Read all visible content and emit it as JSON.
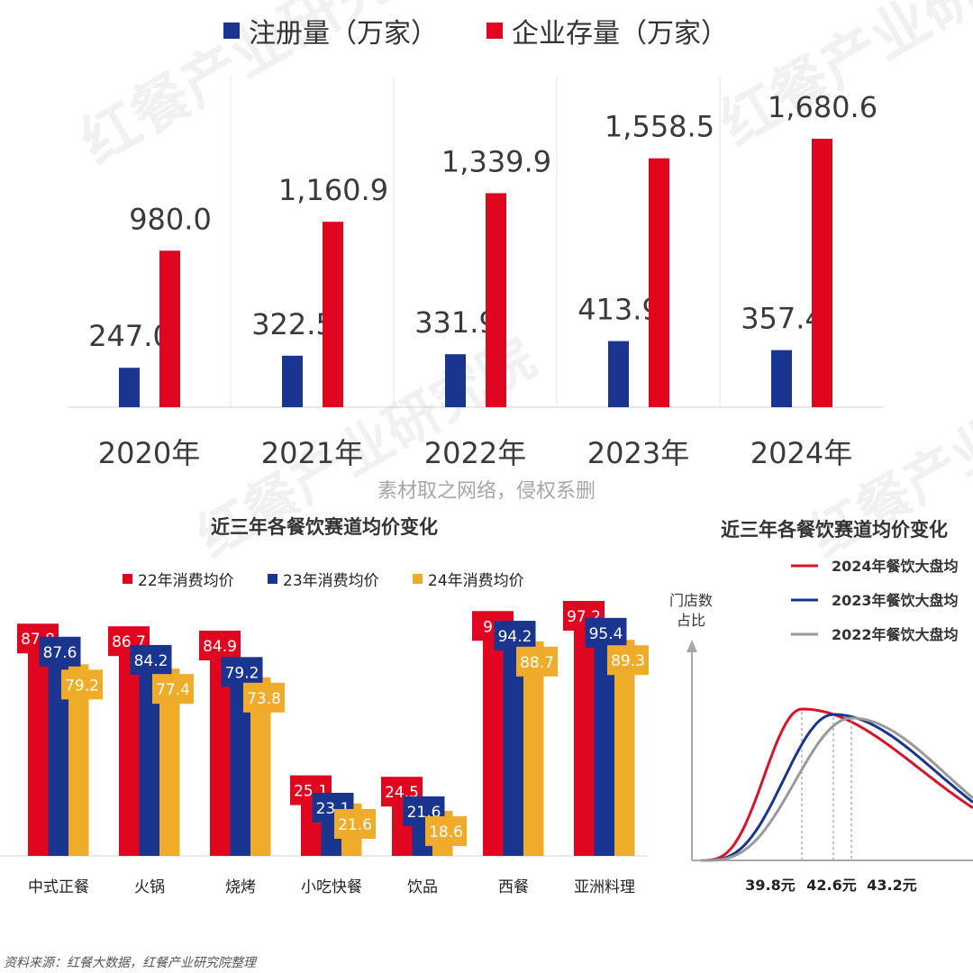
{
  "top_chart": {
    "legend": [
      {
        "label": "注册量（万家）",
        "color": "#1a3590"
      },
      {
        "label": "企业存量（万家）",
        "color": "#e0061f"
      }
    ],
    "chart_data": {
      "type": "bar",
      "categories": [
        "2020年",
        "2021年",
        "2022年",
        "2023年",
        "2024年"
      ],
      "series": [
        {
          "name": "注册量（万家）",
          "values": [
            247.0,
            322.5,
            331.9,
            413.9,
            357.4
          ],
          "labels": [
            "247.0",
            "322.5",
            "331.9",
            "413.9",
            "357.4"
          ]
        },
        {
          "name": "企业存量（万家）",
          "values": [
            980.0,
            1160.9,
            1339.9,
            1558.5,
            1680.6
          ],
          "labels": [
            "980.0",
            "1,160.9",
            "1,339.9",
            "1,558.5",
            "1,680.6"
          ]
        }
      ],
      "ylim": [
        0,
        2070
      ],
      "grid": "vertical separators"
    }
  },
  "note": "素材取之网络，侵权系删",
  "mid_chart": {
    "title": "近三年各餐饮赛道均价变化",
    "legend": [
      {
        "label": "22年消费均价",
        "color": "#e0061f"
      },
      {
        "label": "23年消费均价",
        "color": "#1a3590"
      },
      {
        "label": "24年消费均价",
        "color": "#efac2a"
      }
    ],
    "chart_data": {
      "type": "bar",
      "categories": [
        "中式正餐",
        "火锅",
        "烧烤",
        "小吃快餐",
        "饮品",
        "西餐",
        "亚洲料理"
      ],
      "series": [
        {
          "name": "22年消费均价",
          "values": [
            87.8,
            86.7,
            84.9,
            25.1,
            24.5,
            93,
            97.2
          ]
        },
        {
          "name": "23年消费均价",
          "values": [
            87.6,
            84.2,
            79.2,
            23.1,
            21.6,
            94.2,
            95.4
          ]
        },
        {
          "name": "24年消费均价",
          "values": [
            79.2,
            77.4,
            73.8,
            21.6,
            18.6,
            88.7,
            89.3
          ]
        }
      ],
      "ylim": [
        0,
        108
      ]
    }
  },
  "right_chart": {
    "title": "近三年各餐饮赛道均价变化",
    "y_axis_label_line1": "门店数",
    "y_axis_label_line2": "占比",
    "legend": [
      {
        "label": "2024年餐饮大盘均",
        "color": "#d7142a"
      },
      {
        "label": "2023年餐饮大盘均",
        "color": "#1a3590"
      },
      {
        "label": "2022年餐饮大盘均",
        "color": "#9a9a9a"
      }
    ],
    "chart_data": {
      "type": "line",
      "series": [
        {
          "name": "2024年餐饮大盘均",
          "peak_price": 39.8,
          "color": "#d7142a"
        },
        {
          "name": "2023年餐饮大盘均",
          "peak_price": 42.6,
          "color": "#1a3590"
        },
        {
          "name": "2022年餐饮大盘均",
          "peak_price": 43.2,
          "color": "#9a9a9a"
        }
      ],
      "peak_labels": [
        "39.8元",
        "42.6元",
        "43.2元"
      ]
    }
  },
  "watermark": "红餐产业研究院",
  "source": "资料来源：红餐大数据，红餐产业研究院整理"
}
